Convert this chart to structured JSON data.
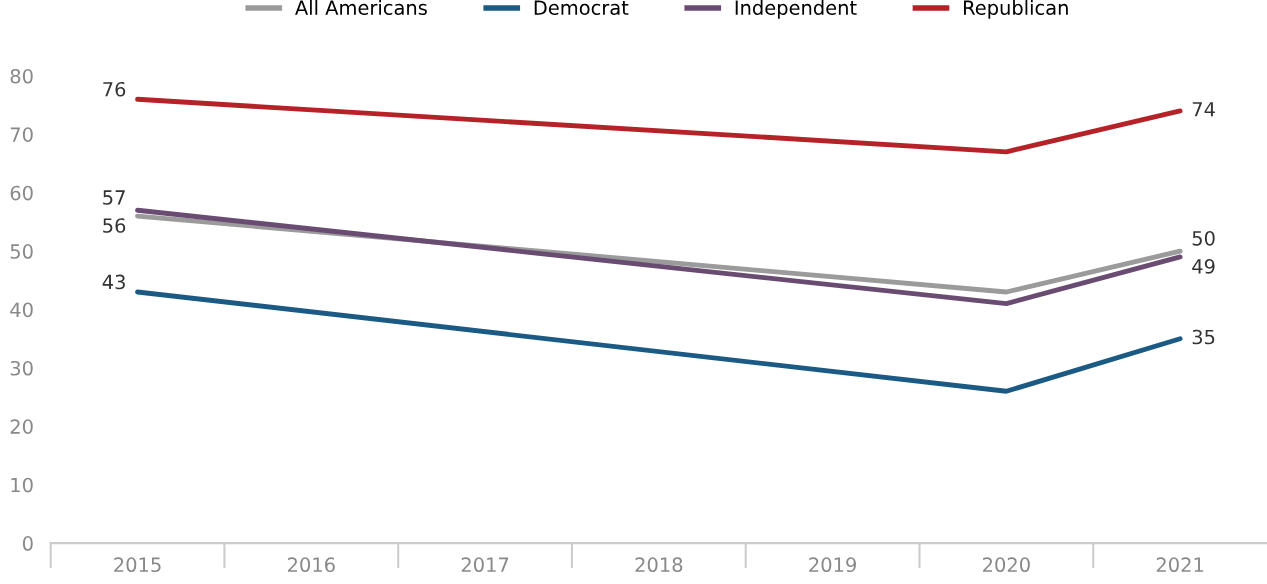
{
  "chart_data": {
    "type": "line",
    "categories": [
      "2015",
      "2016",
      "2017",
      "2018",
      "2019",
      "2020",
      "2021"
    ],
    "series": [
      {
        "name": "All Americans",
        "color": "#9b9b9b",
        "values": [
          56,
          null,
          null,
          null,
          null,
          43,
          50
        ],
        "value_labels": [
          "56",
          null,
          null,
          null,
          null,
          null,
          "50"
        ]
      },
      {
        "name": "Democrat",
        "color": "#1b5a85",
        "values": [
          43,
          null,
          null,
          null,
          null,
          26,
          35
        ],
        "value_labels": [
          "43",
          null,
          null,
          null,
          null,
          null,
          "35"
        ]
      },
      {
        "name": "Independent",
        "color": "#6a4c73",
        "values": [
          57,
          null,
          null,
          null,
          null,
          41,
          49
        ],
        "value_labels": [
          "57",
          null,
          null,
          null,
          null,
          null,
          "49"
        ]
      },
      {
        "name": "Republican",
        "color": "#b52227",
        "values": [
          76,
          null,
          null,
          null,
          null,
          67,
          74
        ],
        "value_labels": [
          "76",
          null,
          null,
          null,
          null,
          null,
          "74"
        ]
      }
    ],
    "ylim": [
      0,
      80
    ],
    "yticks": [
      0,
      10,
      20,
      30,
      40,
      50,
      60,
      70,
      80
    ],
    "grid": false,
    "legend": "top",
    "marker": "none",
    "line_style": "solid"
  }
}
